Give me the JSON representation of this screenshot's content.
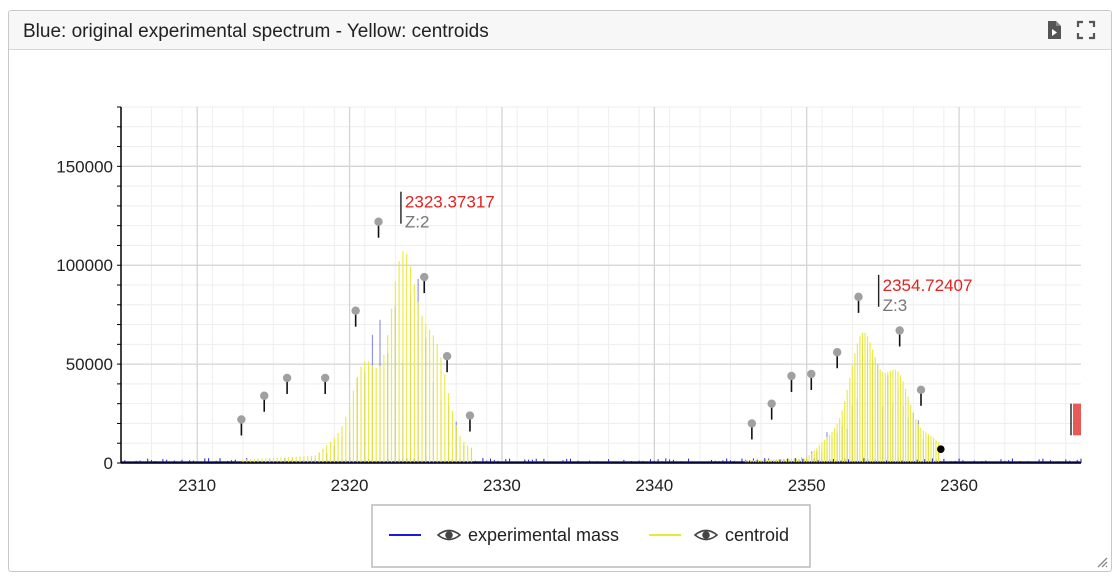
{
  "panel": {
    "title": "Blue: original experimental spectrum - Yellow: centroids",
    "icons": [
      "export-document-icon",
      "fullscreen-icon"
    ]
  },
  "legend": {
    "items": [
      {
        "label": "experimental mass",
        "color": "#1a1adb",
        "icon": "eye-icon"
      },
      {
        "label": "centroid",
        "color": "#e9e93a",
        "icon": "eye-icon"
      }
    ]
  },
  "colors": {
    "annotation_mass": "#e0231f",
    "annotation_charge": "#777777",
    "experimental": "#1a1adb",
    "centroid": "#e9e93a",
    "marker": "#a0a0a0"
  },
  "chart_data": {
    "type": "line",
    "xlim": [
      2305,
      2368
    ],
    "ylim": [
      0,
      180000
    ],
    "grid": true,
    "legend_position": "bottom-center",
    "x_ticks": [
      "2310",
      "2320",
      "2330",
      "2340",
      "2350",
      "2360"
    ],
    "y_ticks": [
      "0",
      "50000",
      "100000",
      "150000"
    ],
    "annotations": [
      {
        "mass_label": "2323.37317",
        "charge_label": "Z:2",
        "x": 2323.37,
        "y": 122000
      },
      {
        "mass_label": "2354.72407",
        "charge_label": "Z:3",
        "x": 2354.72,
        "y": 80000
      }
    ],
    "series": [
      {
        "name": "experimental mass",
        "envelopes": [
          {
            "center": 2323.4,
            "height": 120000,
            "width": 2.2,
            "start": 2313.0,
            "end": 2328.0,
            "spacing": 0.5
          },
          {
            "center": 2354.7,
            "height": 77000,
            "width": 2.0,
            "start": 2346.0,
            "end": 2358.7,
            "spacing": 0.333
          }
        ],
        "noise_level": 2500
      },
      {
        "name": "centroid",
        "envelopes": [
          {
            "center": 2323.4,
            "height": 120000,
            "width": 2.2,
            "start": 2313.0,
            "end": 2328.0,
            "spacing": 0.5
          },
          {
            "center": 2354.7,
            "height": 77000,
            "width": 2.0,
            "start": 2346.0,
            "end": 2358.7,
            "spacing": 0.333
          }
        ]
      }
    ],
    "peak_markers": [
      {
        "x": 2312.9,
        "y": 22000
      },
      {
        "x": 2314.4,
        "y": 34000
      },
      {
        "x": 2315.9,
        "y": 43000
      },
      {
        "x": 2318.4,
        "y": 43000
      },
      {
        "x": 2320.4,
        "y": 77000
      },
      {
        "x": 2321.9,
        "y": 122000
      },
      {
        "x": 2324.9,
        "y": 94000
      },
      {
        "x": 2326.4,
        "y": 54000
      },
      {
        "x": 2327.9,
        "y": 24000
      },
      {
        "x": 2346.4,
        "y": 20000
      },
      {
        "x": 2347.7,
        "y": 30000
      },
      {
        "x": 2349.0,
        "y": 44000
      },
      {
        "x": 2350.3,
        "y": 45000
      },
      {
        "x": 2352.0,
        "y": 56000
      },
      {
        "x": 2353.4,
        "y": 84000
      },
      {
        "x": 2356.1,
        "y": 67000
      },
      {
        "x": 2357.5,
        "y": 37000
      }
    ],
    "black_marker": {
      "x": 2358.8,
      "y": 7000
    }
  }
}
